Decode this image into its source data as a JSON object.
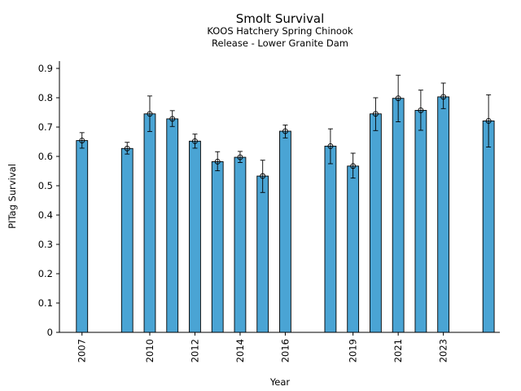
{
  "chart_data": {
    "type": "bar",
    "title": "Smolt Survival",
    "subtitle_lines": [
      "KOOS Hatchery Spring Chinook",
      "Release - Lower Granite Dam"
    ],
    "xlabel": "Year",
    "ylabel": "PITag Survival",
    "ylim": [
      0,
      0.925
    ],
    "yticks": [
      0,
      0.1,
      0.2,
      0.3,
      0.4,
      0.5,
      0.6,
      0.7,
      0.8,
      0.9
    ],
    "ytick_labels": [
      "0",
      "0.1",
      "0.2",
      "0.3",
      "0.4",
      "0.5",
      "0.6",
      "0.7",
      "0.8",
      "0.9"
    ],
    "xlim": [
      2006.0,
      2025.5
    ],
    "xticks": [
      2007,
      2010,
      2012,
      2014,
      2016,
      2019,
      2021,
      2023
    ],
    "xtick_labels": [
      "2007",
      "2010",
      "2012",
      "2014",
      "2016",
      "2019",
      "2021",
      "2023"
    ],
    "bar_color": "#4aa4d4",
    "grid": false,
    "series": [
      {
        "name": "PITag Survival",
        "x": [
          2007,
          2009,
          2010,
          2011,
          2012,
          2013,
          2014,
          2015,
          2016,
          2018,
          2019,
          2020,
          2021,
          2022,
          2023,
          2025
        ],
        "values": [
          0.654,
          0.627,
          0.745,
          0.728,
          0.652,
          0.582,
          0.597,
          0.533,
          0.686,
          0.635,
          0.567,
          0.745,
          0.798,
          0.757,
          0.803,
          0.721
        ],
        "err_low": [
          0.628,
          0.608,
          0.685,
          0.702,
          0.628,
          0.551,
          0.579,
          0.477,
          0.663,
          0.575,
          0.526,
          0.688,
          0.718,
          0.689,
          0.763,
          0.632
        ],
        "err_high": [
          0.681,
          0.648,
          0.806,
          0.756,
          0.676,
          0.616,
          0.617,
          0.587,
          0.707,
          0.694,
          0.611,
          0.8,
          0.877,
          0.826,
          0.85,
          0.81
        ]
      }
    ]
  }
}
